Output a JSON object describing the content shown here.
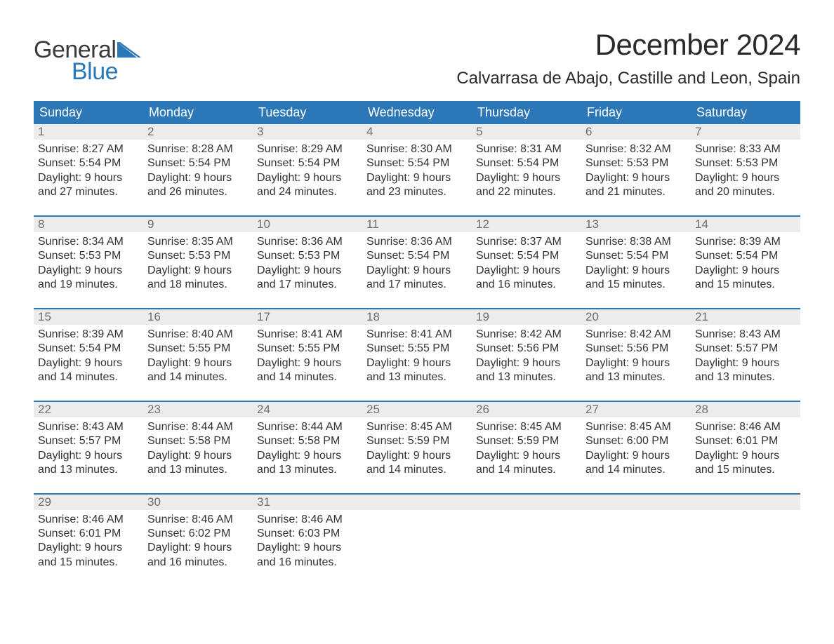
{
  "brand": {
    "word1": "General",
    "word2": "Blue",
    "accent_color": "#2b77b7",
    "text_color": "#3a3a3a"
  },
  "title": "December 2024",
  "location": "Calvarrasa de Abajo, Castille and Leon, Spain",
  "colors": {
    "header_bg": "#2b77b7",
    "header_text": "#ffffff",
    "strip_bg": "#ececec",
    "strip_text": "#6f6f6f",
    "body_text": "#333333",
    "page_bg": "#ffffff"
  },
  "typography": {
    "title_fontsize": 42,
    "location_fontsize": 24,
    "dayheader_fontsize": 18,
    "daynum_fontsize": 17,
    "daydata_fontsize": 16
  },
  "day_headers": [
    "Sunday",
    "Monday",
    "Tuesday",
    "Wednesday",
    "Thursday",
    "Friday",
    "Saturday"
  ],
  "labels": {
    "sunrise": "Sunrise:",
    "sunset": "Sunset:",
    "daylight": "Daylight:"
  },
  "weeks": [
    [
      {
        "n": "1",
        "sunrise": "8:27 AM",
        "sunset": "5:54 PM",
        "dl1": "9 hours",
        "dl2": "and 27 minutes."
      },
      {
        "n": "2",
        "sunrise": "8:28 AM",
        "sunset": "5:54 PM",
        "dl1": "9 hours",
        "dl2": "and 26 minutes."
      },
      {
        "n": "3",
        "sunrise": "8:29 AM",
        "sunset": "5:54 PM",
        "dl1": "9 hours",
        "dl2": "and 24 minutes."
      },
      {
        "n": "4",
        "sunrise": "8:30 AM",
        "sunset": "5:54 PM",
        "dl1": "9 hours",
        "dl2": "and 23 minutes."
      },
      {
        "n": "5",
        "sunrise": "8:31 AM",
        "sunset": "5:54 PM",
        "dl1": "9 hours",
        "dl2": "and 22 minutes."
      },
      {
        "n": "6",
        "sunrise": "8:32 AM",
        "sunset": "5:53 PM",
        "dl1": "9 hours",
        "dl2": "and 21 minutes."
      },
      {
        "n": "7",
        "sunrise": "8:33 AM",
        "sunset": "5:53 PM",
        "dl1": "9 hours",
        "dl2": "and 20 minutes."
      }
    ],
    [
      {
        "n": "8",
        "sunrise": "8:34 AM",
        "sunset": "5:53 PM",
        "dl1": "9 hours",
        "dl2": "and 19 minutes."
      },
      {
        "n": "9",
        "sunrise": "8:35 AM",
        "sunset": "5:53 PM",
        "dl1": "9 hours",
        "dl2": "and 18 minutes."
      },
      {
        "n": "10",
        "sunrise": "8:36 AM",
        "sunset": "5:53 PM",
        "dl1": "9 hours",
        "dl2": "and 17 minutes."
      },
      {
        "n": "11",
        "sunrise": "8:36 AM",
        "sunset": "5:54 PM",
        "dl1": "9 hours",
        "dl2": "and 17 minutes."
      },
      {
        "n": "12",
        "sunrise": "8:37 AM",
        "sunset": "5:54 PM",
        "dl1": "9 hours",
        "dl2": "and 16 minutes."
      },
      {
        "n": "13",
        "sunrise": "8:38 AM",
        "sunset": "5:54 PM",
        "dl1": "9 hours",
        "dl2": "and 15 minutes."
      },
      {
        "n": "14",
        "sunrise": "8:39 AM",
        "sunset": "5:54 PM",
        "dl1": "9 hours",
        "dl2": "and 15 minutes."
      }
    ],
    [
      {
        "n": "15",
        "sunrise": "8:39 AM",
        "sunset": "5:54 PM",
        "dl1": "9 hours",
        "dl2": "and 14 minutes."
      },
      {
        "n": "16",
        "sunrise": "8:40 AM",
        "sunset": "5:55 PM",
        "dl1": "9 hours",
        "dl2": "and 14 minutes."
      },
      {
        "n": "17",
        "sunrise": "8:41 AM",
        "sunset": "5:55 PM",
        "dl1": "9 hours",
        "dl2": "and 14 minutes."
      },
      {
        "n": "18",
        "sunrise": "8:41 AM",
        "sunset": "5:55 PM",
        "dl1": "9 hours",
        "dl2": "and 13 minutes."
      },
      {
        "n": "19",
        "sunrise": "8:42 AM",
        "sunset": "5:56 PM",
        "dl1": "9 hours",
        "dl2": "and 13 minutes."
      },
      {
        "n": "20",
        "sunrise": "8:42 AM",
        "sunset": "5:56 PM",
        "dl1": "9 hours",
        "dl2": "and 13 minutes."
      },
      {
        "n": "21",
        "sunrise": "8:43 AM",
        "sunset": "5:57 PM",
        "dl1": "9 hours",
        "dl2": "and 13 minutes."
      }
    ],
    [
      {
        "n": "22",
        "sunrise": "8:43 AM",
        "sunset": "5:57 PM",
        "dl1": "9 hours",
        "dl2": "and 13 minutes."
      },
      {
        "n": "23",
        "sunrise": "8:44 AM",
        "sunset": "5:58 PM",
        "dl1": "9 hours",
        "dl2": "and 13 minutes."
      },
      {
        "n": "24",
        "sunrise": "8:44 AM",
        "sunset": "5:58 PM",
        "dl1": "9 hours",
        "dl2": "and 13 minutes."
      },
      {
        "n": "25",
        "sunrise": "8:45 AM",
        "sunset": "5:59 PM",
        "dl1": "9 hours",
        "dl2": "and 14 minutes."
      },
      {
        "n": "26",
        "sunrise": "8:45 AM",
        "sunset": "5:59 PM",
        "dl1": "9 hours",
        "dl2": "and 14 minutes."
      },
      {
        "n": "27",
        "sunrise": "8:45 AM",
        "sunset": "6:00 PM",
        "dl1": "9 hours",
        "dl2": "and 14 minutes."
      },
      {
        "n": "28",
        "sunrise": "8:46 AM",
        "sunset": "6:01 PM",
        "dl1": "9 hours",
        "dl2": "and 15 minutes."
      }
    ],
    [
      {
        "n": "29",
        "sunrise": "8:46 AM",
        "sunset": "6:01 PM",
        "dl1": "9 hours",
        "dl2": "and 15 minutes."
      },
      {
        "n": "30",
        "sunrise": "8:46 AM",
        "sunset": "6:02 PM",
        "dl1": "9 hours",
        "dl2": "and 16 minutes."
      },
      {
        "n": "31",
        "sunrise": "8:46 AM",
        "sunset": "6:03 PM",
        "dl1": "9 hours",
        "dl2": "and 16 minutes."
      },
      {
        "empty": true
      },
      {
        "empty": true
      },
      {
        "empty": true
      },
      {
        "empty": true
      }
    ]
  ]
}
